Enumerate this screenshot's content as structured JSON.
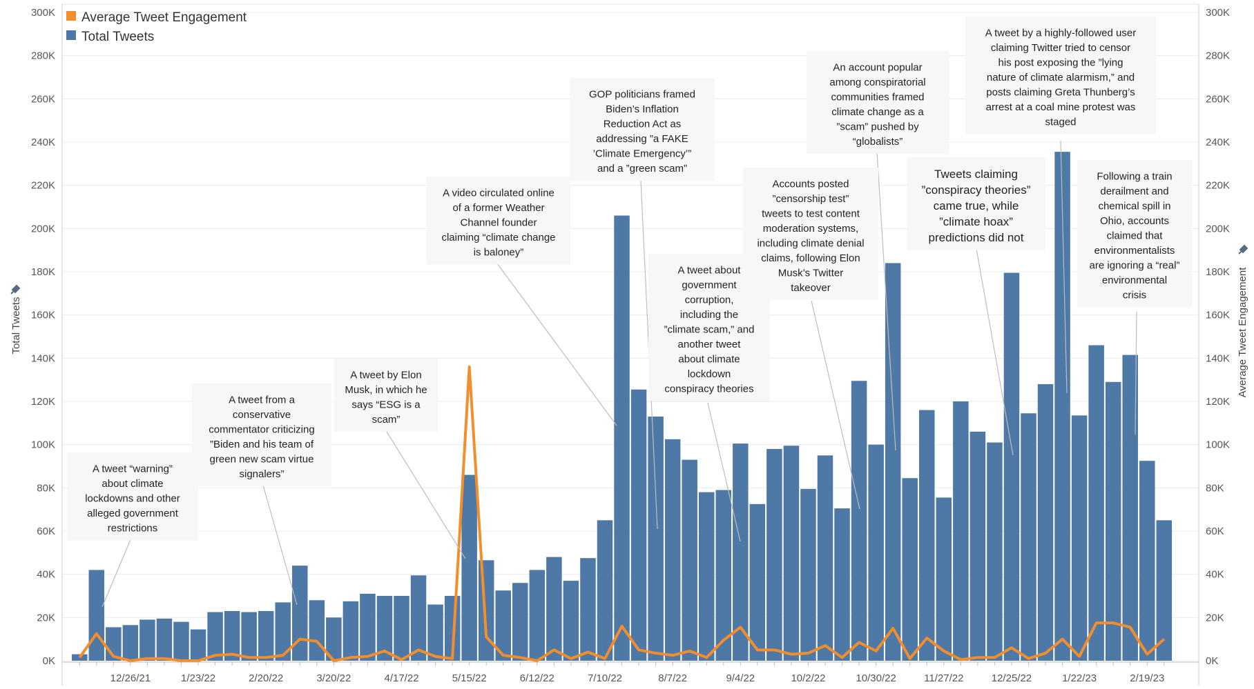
{
  "chart_data": {
    "type": "bar",
    "legend": {
      "position": "top-left",
      "entries": [
        {
          "label": "Average Tweet Engagement",
          "color": "#F28E2B"
        },
        {
          "label": "Total Tweets",
          "color": "#4E79A7"
        }
      ]
    },
    "y_left_label": "Total Tweets",
    "y_right_label": "Average Tweet Engagement",
    "ylim": [
      0,
      300000
    ],
    "y_tick_labels": [
      "0K",
      "20K",
      "40K",
      "60K",
      "80K",
      "100K",
      "120K",
      "140K",
      "160K",
      "180K",
      "200K",
      "220K",
      "240K",
      "260K",
      "280K",
      "300K"
    ],
    "x_tick_labels": [
      "12/26/21",
      "1/23/22",
      "2/20/22",
      "3/20/22",
      "4/17/22",
      "5/15/22",
      "6/12/22",
      "7/10/22",
      "8/7/22",
      "9/4/22",
      "10/2/22",
      "10/30/22",
      "11/27/22",
      "12/25/22",
      "1/22/23",
      "2/19/23"
    ],
    "x_tick_week_index": [
      3,
      7,
      11,
      15,
      19,
      23,
      27,
      31,
      35,
      39,
      43,
      47,
      51,
      55,
      59,
      63
    ],
    "grid": true,
    "series": [
      {
        "name": "Total Tweets",
        "type": "bar",
        "color": "#4E79A7",
        "values": [
          3000,
          42000,
          15500,
          16500,
          19000,
          19500,
          18000,
          14500,
          22500,
          23000,
          22500,
          23000,
          27000,
          44000,
          28000,
          20000,
          27500,
          31000,
          30000,
          30000,
          39500,
          26000,
          30000,
          86000,
          46500,
          32500,
          36000,
          42000,
          48000,
          37000,
          47500,
          65000,
          206000,
          125500,
          113000,
          102500,
          93000,
          78000,
          79000,
          100500,
          72500,
          98000,
          99500,
          79500,
          95000,
          70500,
          129500,
          100000,
          184000,
          84500,
          116000,
          75500,
          120000,
          106000,
          101000,
          179500,
          114500,
          128000,
          235500,
          113500,
          146000,
          129000,
          141500,
          92500,
          65000
        ]
      },
      {
        "name": "Average Tweet Engagement",
        "type": "line",
        "color": "#F28E2B",
        "values": [
          1500,
          12500,
          2000,
          0,
          1000,
          1000,
          0,
          0,
          2500,
          3000,
          1500,
          1500,
          2500,
          10000,
          9000,
          0,
          1500,
          2000,
          4500,
          500,
          5000,
          2000,
          1000,
          136000,
          11000,
          2500,
          1500,
          0,
          5000,
          1000,
          4000,
          1000,
          16000,
          5000,
          3500,
          2500,
          4500,
          1500,
          9500,
          15500,
          5000,
          5000,
          3000,
          3500,
          7000,
          1500,
          8500,
          4500,
          15000,
          1000,
          10500,
          4500,
          500,
          1500,
          1500,
          6000,
          1000,
          3500,
          10000,
          2000,
          17500,
          17500,
          15500,
          3000,
          10000
        ]
      }
    ],
    "annotations": [
      {
        "lines": [
          "A tweet “warning”",
          "about climate",
          "lockdowns and other",
          "alleged government",
          "restrictions"
        ]
      },
      {
        "lines": [
          "A tweet from a",
          "conservative",
          "commentator criticizing",
          "”Biden and his team of",
          "green new scam virtue",
          "signalers”"
        ]
      },
      {
        "lines": [
          "A tweet by Elon",
          "Musk, in which he",
          "says “ESG is a",
          "scam”"
        ]
      },
      {
        "lines": [
          "A video circulated online",
          "of a former Weather",
          "Channel founder",
          "claiming “climate change",
          "is baloney”"
        ]
      },
      {
        "lines": [
          "GOP politicians framed",
          "Biden’s Inflation",
          "Reduction Act as",
          "addressing ”a FAKE",
          "’Climate Emergency’”",
          "and a ”green scam”"
        ]
      },
      {
        "lines": [
          "A tweet about",
          "government",
          "corruption,",
          "including the",
          "”climate scam,” and",
          "another tweet",
          "about climate",
          "lockdown",
          "conspiracy theories"
        ]
      },
      {
        "lines": [
          "Accounts posted",
          "”censorship test”",
          "tweets to test content",
          "moderation systems,",
          "including climate denial",
          "claims, following Elon",
          "Musk’s Twitter",
          "takeover"
        ]
      },
      {
        "lines": [
          "An account popular",
          "among conspiratorial",
          "communities framed",
          "climate change as a",
          "”scam” pushed by",
          "“globalists”"
        ]
      },
      {
        "lines": [
          "Tweets claiming",
          "”conspiracy theories”",
          "came true, while",
          "”climate hoax”",
          "predictions did not"
        ]
      },
      {
        "lines": [
          "A tweet by a highly-followed user",
          "claiming Twitter tried to censor",
          "his post exposing the ”lying",
          "nature of climate alarmism,” and",
          "posts claiming Greta Thunberg’s",
          "arrest at a coal mine protest was",
          "staged"
        ]
      },
      {
        "lines": [
          "Following a train",
          "derailment and",
          "chemical spill in",
          "Ohio, accounts",
          "claimed that",
          "environmentalists",
          "are ignoring a “real”",
          "environmental",
          "crisis"
        ]
      }
    ]
  }
}
